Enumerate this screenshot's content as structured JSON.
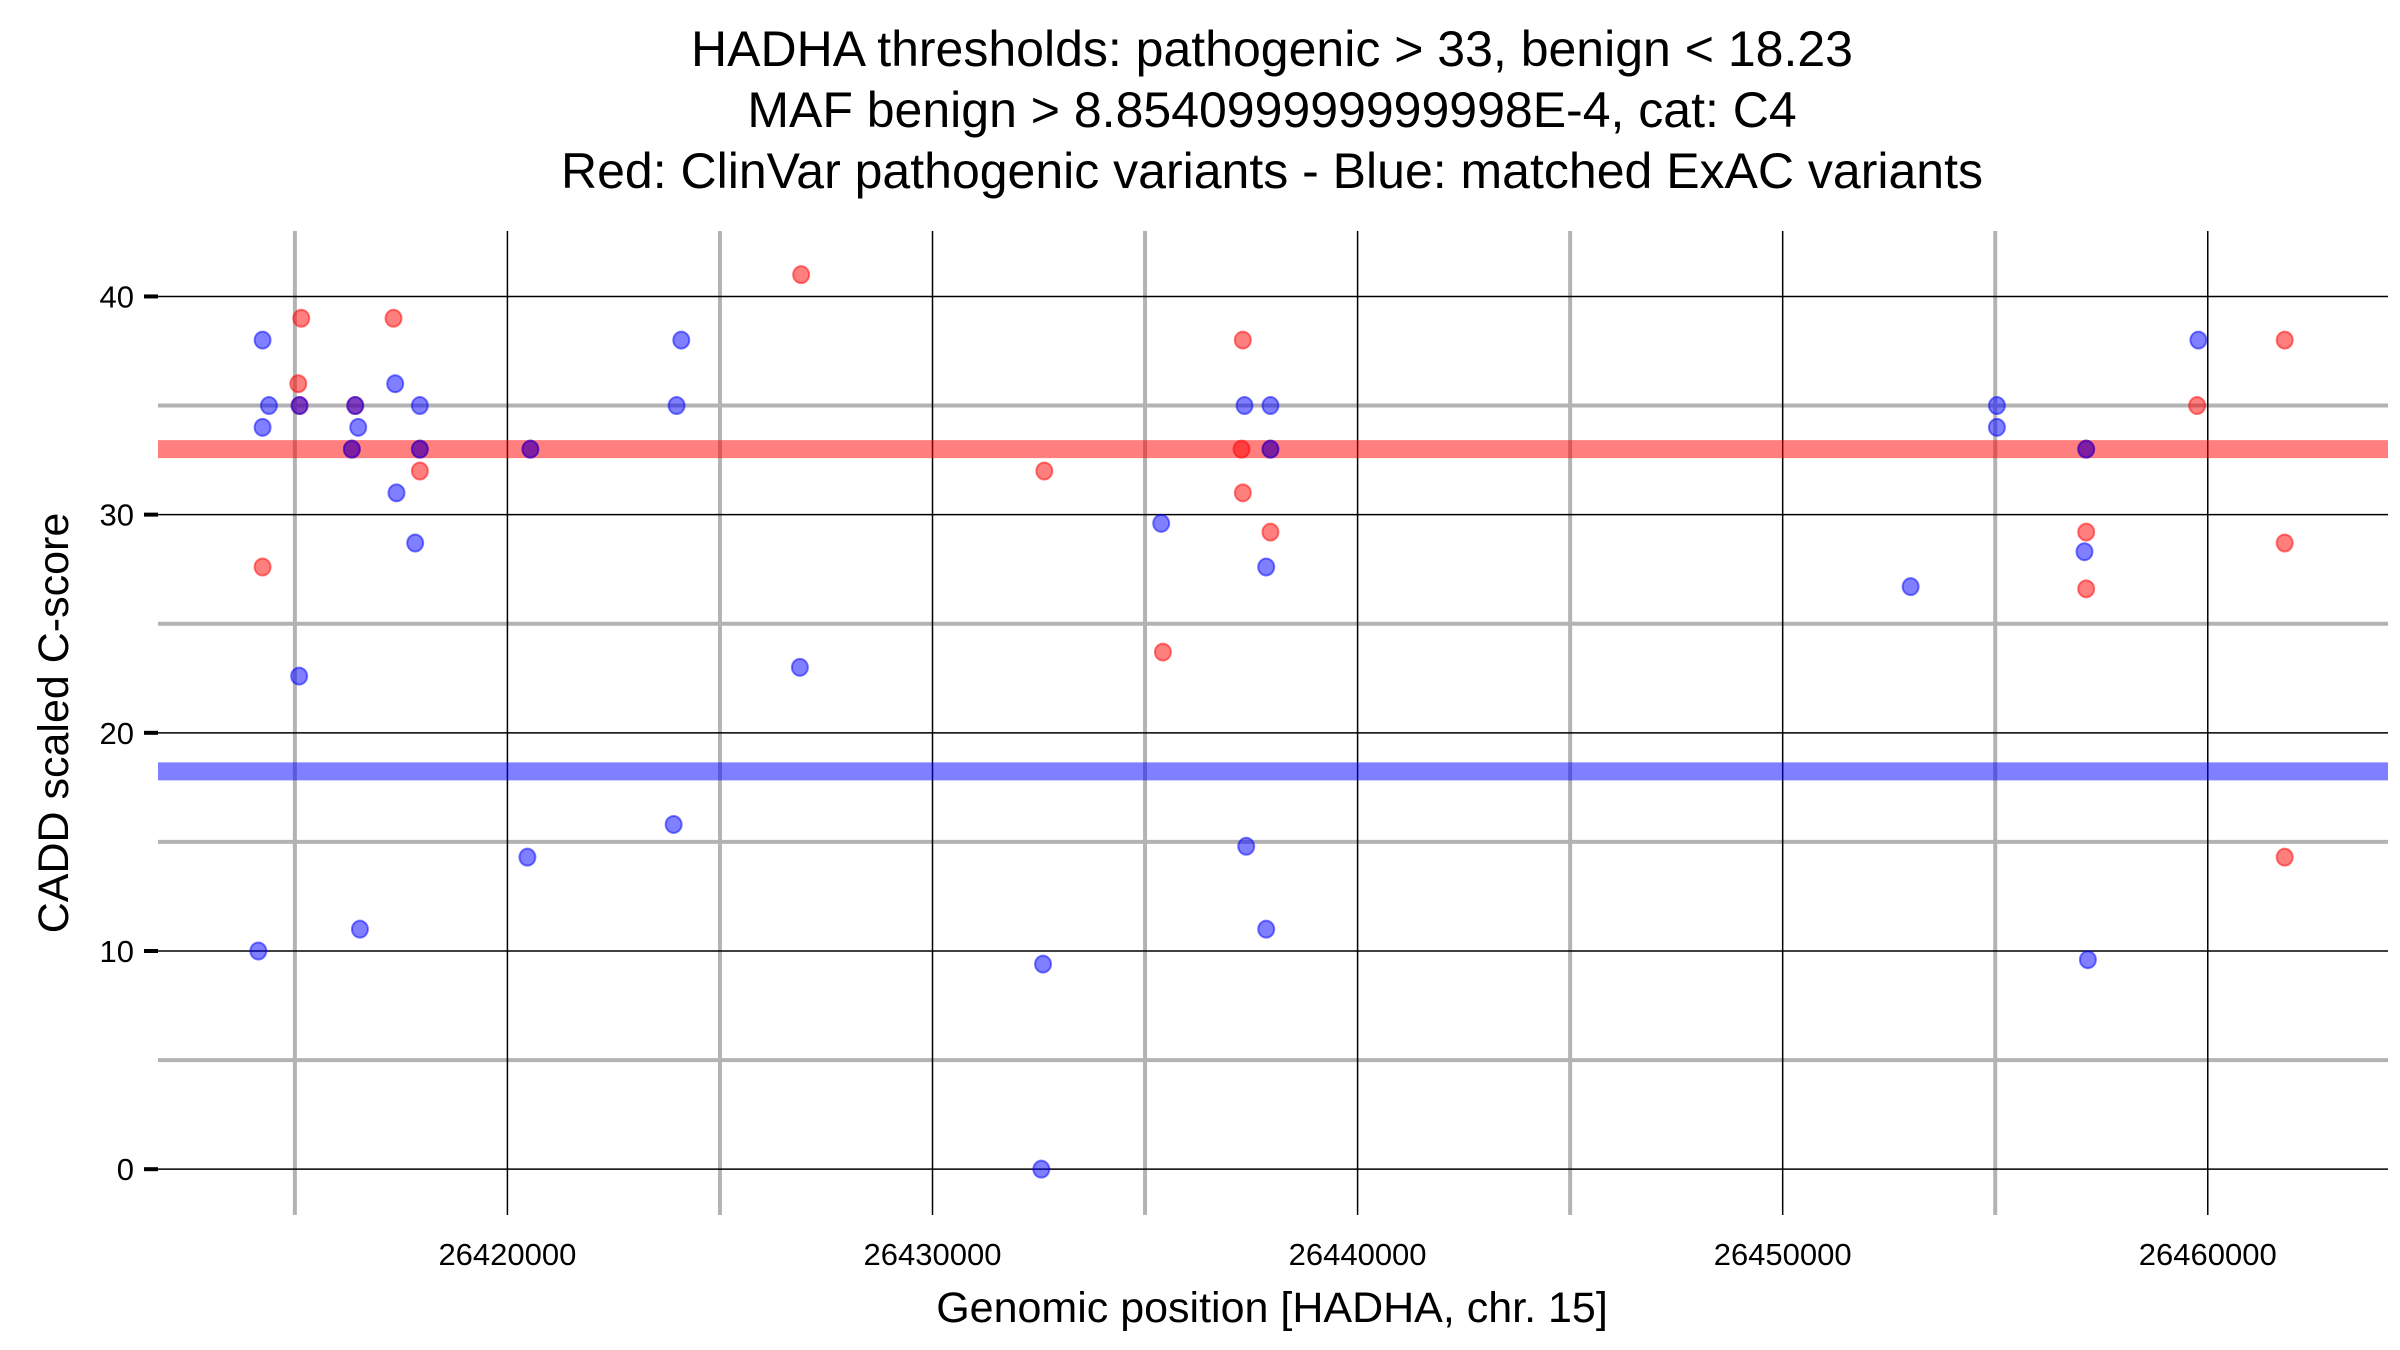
{
  "chart_data": {
    "type": "scatter",
    "title": [
      "HADHA thresholds: pathogenic > 33, benign < 18.23",
      "MAF benign > 8.854099999999998E-4, cat: C4",
      "Red: ClinVar pathogenic variants - Blue: matched ExAC variants"
    ],
    "xlabel": "Genomic position [HADHA, chr. 15]",
    "ylabel": "CADD scaled C-score",
    "xlim": [
      26411780,
      26464240
    ],
    "ylim": [
      -2.1,
      43
    ],
    "x_major_ticks": [
      26420000,
      26430000,
      26440000,
      26450000,
      26460000
    ],
    "x_tick_labels": [
      "26420000",
      "26430000",
      "26440000",
      "26450000",
      "26460000"
    ],
    "x_minor_ticks": [
      26415000,
      26425000,
      26435000,
      26445000,
      26455000
    ],
    "y_major_ticks": [
      0,
      10,
      20,
      30,
      40
    ],
    "y_tick_labels": [
      "0",
      "10",
      "20",
      "30",
      "40"
    ],
    "y_minor_ticks": [
      5,
      15,
      25,
      35
    ],
    "grid": true,
    "thresholds": [
      {
        "name": "pathogenic",
        "value": 33,
        "color": "#ff0000"
      },
      {
        "name": "benign",
        "value": 18.23,
        "color": "#0000ff"
      }
    ],
    "series": [
      {
        "name": "ClinVar pathogenic variants",
        "color": "#ff0000",
        "points": [
          [
            26415150,
            39
          ],
          [
            26415080,
            36
          ],
          [
            26415110,
            35
          ],
          [
            26416420,
            35
          ],
          [
            26416340,
            33
          ],
          [
            26417320,
            39
          ],
          [
            26417940,
            33
          ],
          [
            26417940,
            32
          ],
          [
            26414240,
            27.6
          ],
          [
            26420540,
            33
          ],
          [
            26426910,
            41
          ],
          [
            26432630,
            32
          ],
          [
            26435420,
            23.7
          ],
          [
            26437300,
            38
          ],
          [
            26437270,
            33
          ],
          [
            26437300,
            31
          ],
          [
            26437950,
            33
          ],
          [
            26437950,
            29.2
          ],
          [
            26457140,
            33
          ],
          [
            26457140,
            29.2
          ],
          [
            26457140,
            26.6
          ],
          [
            26459750,
            35
          ],
          [
            26461810,
            38
          ],
          [
            26461810,
            28.7
          ],
          [
            26461810,
            14.3
          ]
        ]
      },
      {
        "name": "matched ExAC variants",
        "color": "#0000ff",
        "points": [
          [
            26414240,
            38
          ],
          [
            26414390,
            35
          ],
          [
            26414240,
            34
          ],
          [
            26415110,
            35
          ],
          [
            26415100,
            22.6
          ],
          [
            26414140,
            10
          ],
          [
            26416490,
            34
          ],
          [
            26416420,
            35
          ],
          [
            26416530,
            11
          ],
          [
            26417360,
            36
          ],
          [
            26417390,
            31
          ],
          [
            26417940,
            35
          ],
          [
            26417830,
            28.7
          ],
          [
            26416340,
            33
          ],
          [
            26417940,
            33
          ],
          [
            26420540,
            33
          ],
          [
            26420470,
            14.3
          ],
          [
            26423980,
            35
          ],
          [
            26424090,
            38
          ],
          [
            26423910,
            15.8
          ],
          [
            26426880,
            23
          ],
          [
            26432600,
            9.4
          ],
          [
            26432560,
            0
          ],
          [
            26435380,
            29.6
          ],
          [
            26437340,
            35
          ],
          [
            26437950,
            35
          ],
          [
            26437850,
            27.6
          ],
          [
            26437380,
            14.8
          ],
          [
            26437850,
            11
          ],
          [
            26437950,
            33
          ],
          [
            26453010,
            26.7
          ],
          [
            26455040,
            35
          ],
          [
            26455040,
            34
          ],
          [
            26457100,
            28.3
          ],
          [
            26457180,
            9.6
          ],
          [
            26457140,
            33
          ],
          [
            26459780,
            38
          ]
        ]
      }
    ]
  }
}
